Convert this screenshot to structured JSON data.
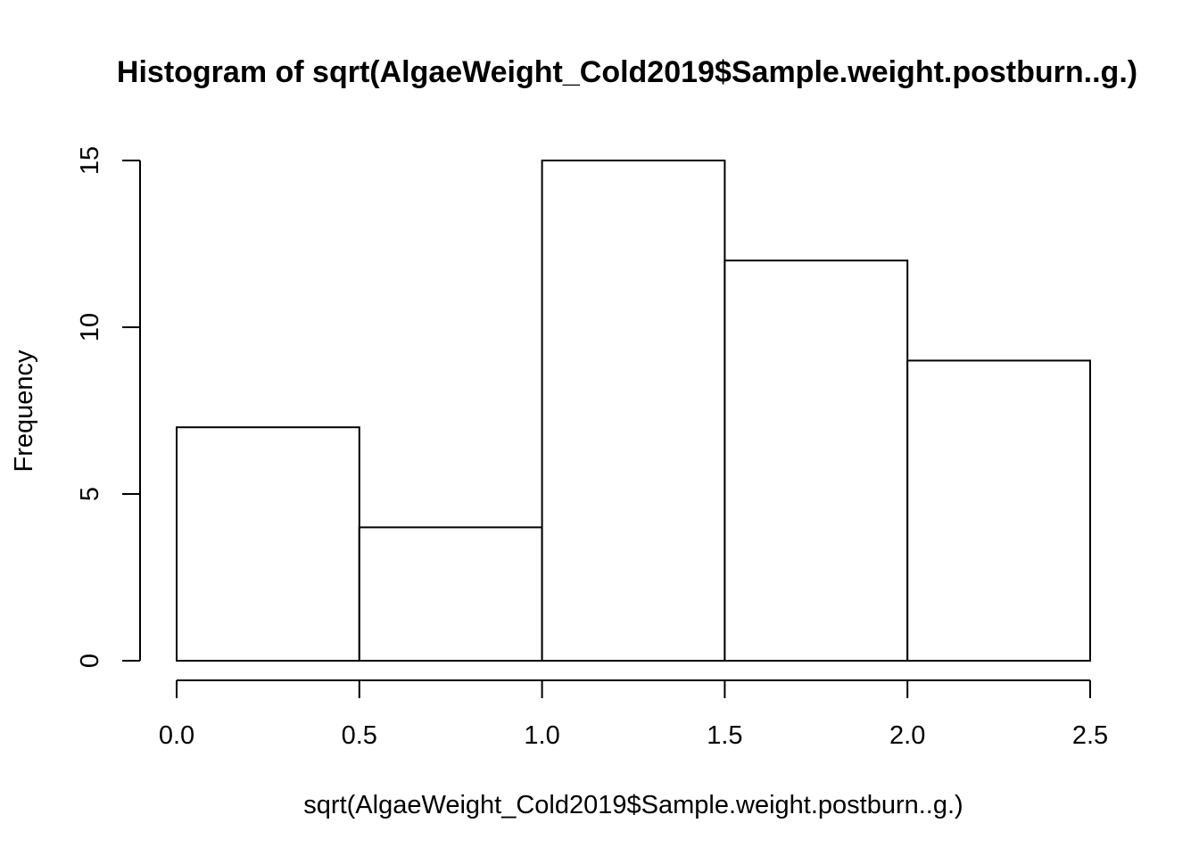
{
  "chart_data": {
    "type": "bar",
    "title": "Histogram of sqrt(AlgaeWeight_Cold2019$Sample.weight.postburn..g.)",
    "xlabel": "sqrt(AlgaeWeight_Cold2019$Sample.weight.postburn..g.)",
    "ylabel": "Frequency",
    "bins": [
      {
        "from": 0.0,
        "to": 0.5,
        "count": 7
      },
      {
        "from": 0.5,
        "to": 1.0,
        "count": 4
      },
      {
        "from": 1.0,
        "to": 1.5,
        "count": 15
      },
      {
        "from": 1.5,
        "to": 2.0,
        "count": 12
      },
      {
        "from": 2.0,
        "to": 2.5,
        "count": 9
      }
    ],
    "xlim": [
      0.0,
      2.5
    ],
    "ylim": [
      0,
      15
    ],
    "xticks": [
      "0.0",
      "0.5",
      "1.0",
      "1.5",
      "2.0",
      "2.5"
    ],
    "yticks": [
      "0",
      "5",
      "10",
      "15"
    ],
    "grid": false,
    "bar_fill": "#ffffff",
    "bar_stroke": "#000000"
  }
}
